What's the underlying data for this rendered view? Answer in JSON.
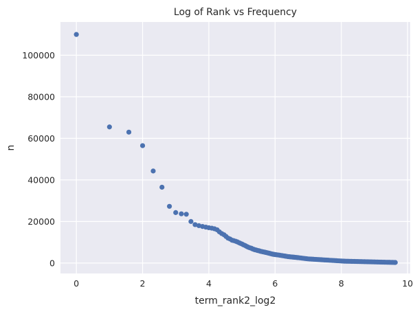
{
  "chart_data": {
    "type": "scatter",
    "title": "Log of Rank vs Frequency",
    "xlabel": "term_rank2_log2",
    "ylabel": "n",
    "xlim": [
      -0.48,
      10.08
    ],
    "ylim": [
      -5000,
      116000
    ],
    "xticks": [
      "0",
      "2",
      "4",
      "6",
      "8",
      "10"
    ],
    "yticks": [
      "0",
      "20000",
      "40000",
      "60000",
      "80000",
      "100000"
    ],
    "grid": true,
    "background": "#EAEAF2",
    "grid_color": "#FFFFFF",
    "marker_color": "#4C72B0",
    "series": [
      {
        "points": [
          [
            0,
            110000
          ],
          [
            1,
            65500
          ],
          [
            1.585,
            63000
          ],
          [
            2,
            56500
          ],
          [
            2.32,
            44300
          ],
          [
            2.585,
            36500
          ],
          [
            2.81,
            27300
          ],
          [
            3,
            24300
          ],
          [
            3.17,
            23700
          ],
          [
            3.32,
            23500
          ],
          [
            3.46,
            20000
          ],
          [
            3.585,
            18500
          ],
          [
            3.7,
            18000
          ],
          [
            3.81,
            17600
          ],
          [
            3.91,
            17300
          ],
          [
            4.0,
            17000
          ],
          [
            4.09,
            16800
          ],
          [
            4.17,
            16500
          ],
          [
            4.25,
            16000
          ],
          [
            4.32,
            15000
          ],
          [
            4.39,
            14200
          ],
          [
            4.46,
            13600
          ],
          [
            4.52,
            12800
          ],
          [
            4.58,
            12000
          ],
          [
            4.64,
            11600
          ],
          [
            4.7,
            11000
          ],
          [
            4.75,
            10800
          ],
          [
            4.81,
            10500
          ],
          [
            4.86,
            10200
          ],
          [
            4.91,
            9800
          ],
          [
            4.95,
            9500
          ],
          [
            5.0,
            9200
          ],
          [
            5.04,
            8800
          ],
          [
            5.09,
            8500
          ],
          [
            5.13,
            8100
          ],
          [
            5.17,
            7800
          ],
          [
            5.21,
            7500
          ],
          [
            5.25,
            7300
          ],
          [
            5.29,
            7100
          ],
          [
            5.32,
            6800
          ],
          [
            5.36,
            6600
          ],
          [
            5.39,
            6400
          ],
          [
            5.43,
            6300
          ],
          [
            5.46,
            6100
          ],
          [
            5.49,
            6000
          ],
          [
            5.52,
            5900
          ],
          [
            5.55,
            5700
          ],
          [
            5.58,
            5600
          ],
          [
            5.61,
            5500
          ],
          [
            5.64,
            5400
          ],
          [
            5.67,
            5300
          ],
          [
            5.7,
            5200
          ],
          [
            5.72,
            5100
          ],
          [
            5.75,
            5000
          ],
          [
            5.78,
            4900
          ],
          [
            5.8,
            4800
          ],
          [
            5.83,
            4700
          ],
          [
            5.85,
            4600
          ],
          [
            5.87,
            4500
          ],
          [
            5.9,
            4400
          ],
          [
            5.92,
            4300
          ],
          [
            5.94,
            4250
          ],
          [
            5.96,
            4200
          ],
          [
            5.98,
            4150
          ],
          [
            6.0,
            4100
          ],
          [
            6.04,
            4000
          ],
          [
            6.09,
            3900
          ],
          [
            6.13,
            3800
          ],
          [
            6.17,
            3700
          ],
          [
            6.21,
            3600
          ],
          [
            6.25,
            3500
          ],
          [
            6.29,
            3400
          ],
          [
            6.32,
            3300
          ],
          [
            6.36,
            3200
          ],
          [
            6.39,
            3100
          ],
          [
            6.43,
            3050
          ],
          [
            6.46,
            3000
          ],
          [
            6.49,
            2950
          ],
          [
            6.52,
            2900
          ],
          [
            6.55,
            2850
          ],
          [
            6.58,
            2800
          ],
          [
            6.61,
            2750
          ],
          [
            6.64,
            2700
          ],
          [
            6.67,
            2650
          ],
          [
            6.7,
            2600
          ],
          [
            6.75,
            2500
          ],
          [
            6.8,
            2400
          ],
          [
            6.85,
            2300
          ],
          [
            6.9,
            2200
          ],
          [
            6.95,
            2100
          ],
          [
            7.0,
            2000
          ],
          [
            7.05,
            1950
          ],
          [
            7.1,
            1900
          ],
          [
            7.15,
            1850
          ],
          [
            7.2,
            1800
          ],
          [
            7.25,
            1750
          ],
          [
            7.3,
            1700
          ],
          [
            7.35,
            1650
          ],
          [
            7.4,
            1600
          ],
          [
            7.45,
            1550
          ],
          [
            7.5,
            1500
          ],
          [
            7.55,
            1450
          ],
          [
            7.6,
            1400
          ],
          [
            7.65,
            1350
          ],
          [
            7.7,
            1300
          ],
          [
            7.75,
            1250
          ],
          [
            7.8,
            1200
          ],
          [
            7.85,
            1150
          ],
          [
            7.9,
            1100
          ],
          [
            7.95,
            1050
          ],
          [
            8.0,
            1000
          ],
          [
            8.05,
            950
          ],
          [
            8.1,
            900
          ],
          [
            8.15,
            880
          ],
          [
            8.2,
            860
          ],
          [
            8.25,
            840
          ],
          [
            8.3,
            820
          ],
          [
            8.35,
            800
          ],
          [
            8.4,
            780
          ],
          [
            8.45,
            760
          ],
          [
            8.5,
            740
          ],
          [
            8.55,
            720
          ],
          [
            8.6,
            700
          ],
          [
            8.65,
            680
          ],
          [
            8.7,
            660
          ],
          [
            8.75,
            640
          ],
          [
            8.8,
            620
          ],
          [
            8.85,
            600
          ],
          [
            8.9,
            580
          ],
          [
            8.95,
            560
          ],
          [
            9.0,
            540
          ],
          [
            9.05,
            520
          ],
          [
            9.1,
            500
          ],
          [
            9.15,
            480
          ],
          [
            9.2,
            460
          ],
          [
            9.25,
            440
          ],
          [
            9.3,
            420
          ],
          [
            9.35,
            400
          ],
          [
            9.4,
            380
          ],
          [
            9.45,
            360
          ],
          [
            9.5,
            340
          ],
          [
            9.55,
            320
          ],
          [
            9.6,
            300
          ],
          [
            9.63,
            290
          ]
        ]
      }
    ]
  }
}
